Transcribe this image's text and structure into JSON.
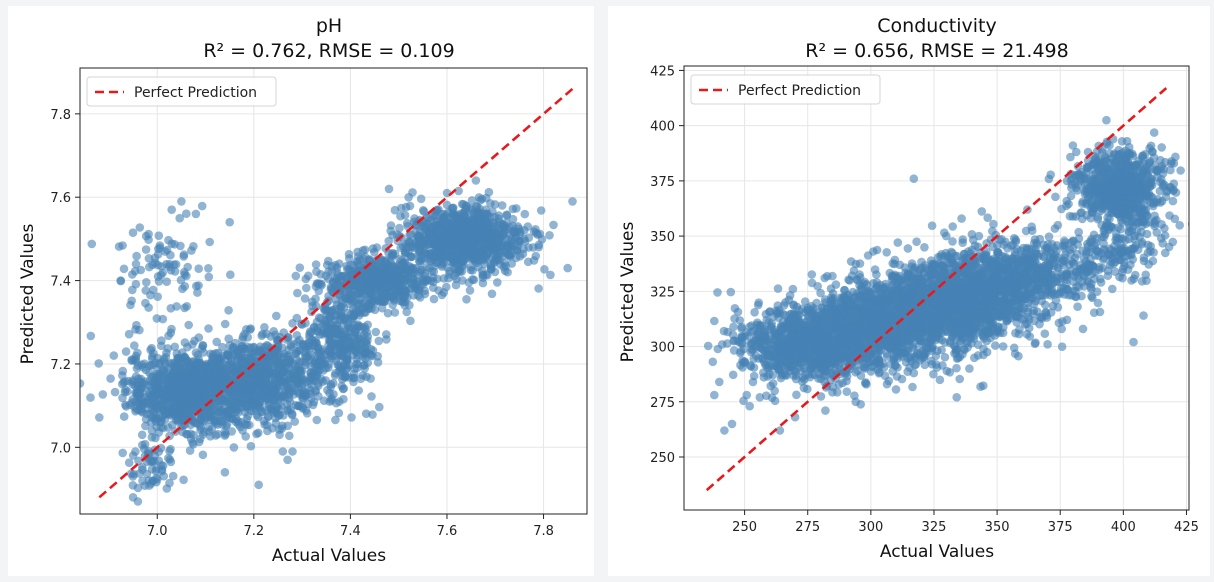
{
  "chart_data": [
    {
      "type": "scatter",
      "title": "pH",
      "subtitle": "R² = 0.762, RMSE = 0.109",
      "xlabel": "Actual Values",
      "ylabel": "Predicted Values",
      "xlim": [
        6.84,
        7.89
      ],
      "ylim": [
        6.84,
        7.91
      ],
      "xticks": [
        "7.0",
        "7.2",
        "7.4",
        "7.6",
        "7.8"
      ],
      "yticks": [
        "7.0",
        "7.2",
        "7.4",
        "7.6",
        "7.8"
      ],
      "grid": true,
      "legend": {
        "location": "top-left",
        "entries": [
          "Perfect Prediction"
        ]
      },
      "reference_line": {
        "name": "Perfect Prediction",
        "color": "#e8191b",
        "style": "dashed",
        "from": [
          6.88,
          6.88
        ],
        "to": [
          7.86,
          7.86
        ]
      },
      "point_color": "#4682b4",
      "series": [
        {
          "clusters": [
            {
              "x": [
                6.93,
                7.2
              ],
              "y": [
                7.03,
                7.24
              ],
              "n": 900
            },
            {
              "x": [
                7.08,
                7.36
              ],
              "y": [
                7.06,
                7.27
              ],
              "n": 750
            },
            {
              "x": [
                7.3,
                7.46
              ],
              "y": [
                7.13,
                7.39
              ],
              "n": 350
            },
            {
              "x": [
                7.34,
                7.58
              ],
              "y": [
                7.33,
                7.47
              ],
              "n": 500
            },
            {
              "x": [
                7.5,
                7.77
              ],
              "y": [
                7.42,
                7.58
              ],
              "n": 900
            },
            {
              "x": [
                6.92,
                7.1
              ],
              "y": [
                7.3,
                7.55
              ],
              "n": 90
            },
            {
              "x": [
                6.94,
                7.04
              ],
              "y": [
                6.88,
                7.03
              ],
              "n": 60
            }
          ],
          "points": [
            {
              "x": 7.05,
              "y": 7.59
            },
            {
              "x": 7.03,
              "y": 7.57
            },
            {
              "x": 7.08,
              "y": 7.56
            },
            {
              "x": 7.15,
              "y": 7.54
            },
            {
              "x": 6.95,
              "y": 6.88
            },
            {
              "x": 6.96,
              "y": 6.87
            },
            {
              "x": 7.21,
              "y": 6.91
            },
            {
              "x": 7.26,
              "y": 6.99
            },
            {
              "x": 7.28,
              "y": 6.99
            },
            {
              "x": 7.27,
              "y": 6.97
            },
            {
              "x": 7.14,
              "y": 6.94
            },
            {
              "x": 7.79,
              "y": 7.48
            },
            {
              "x": 7.86,
              "y": 7.59
            },
            {
              "x": 7.85,
              "y": 7.43
            },
            {
              "x": 7.66,
              "y": 7.64
            },
            {
              "x": 7.6,
              "y": 7.61
            },
            {
              "x": 7.48,
              "y": 7.62
            },
            {
              "x": 6.91,
              "y": 7.22
            }
          ]
        }
      ]
    },
    {
      "type": "scatter",
      "title": "Conductivity",
      "subtitle": "R² = 0.656, RMSE = 21.498",
      "xlabel": "Actual Values",
      "ylabel": "Predicted Values",
      "xlim": [
        226,
        426
      ],
      "ylim": [
        226,
        427
      ],
      "xticks": [
        "250",
        "275",
        "300",
        "325",
        "350",
        "375",
        "400",
        "425"
      ],
      "yticks": [
        "250",
        "275",
        "300",
        "325",
        "350",
        "375",
        "400",
        "425"
      ],
      "grid": true,
      "legend": {
        "location": "top-left",
        "entries": [
          "Perfect Prediction"
        ]
      },
      "reference_line": {
        "name": "Perfect Prediction",
        "color": "#e8191b",
        "style": "dashed",
        "from": [
          235,
          235
        ],
        "to": [
          417,
          417
        ]
      },
      "point_color": "#4682b4",
      "series": [
        {
          "clusters": [
            {
              "x": [
                246,
                300
              ],
              "y": [
                282,
                318
              ],
              "n": 800
            },
            {
              "x": [
                270,
                335
              ],
              "y": [
                288,
                332
              ],
              "n": 1100
            },
            {
              "x": [
                300,
                360
              ],
              "y": [
                298,
                342
              ],
              "n": 1000
            },
            {
              "x": [
                320,
                375
              ],
              "y": [
                305,
                348
              ],
              "n": 600
            },
            {
              "x": [
                345,
                395
              ],
              "y": [
                320,
                350
              ],
              "n": 250
            },
            {
              "x": [
                380,
                418
              ],
              "y": [
                355,
                390
              ],
              "n": 700
            },
            {
              "x": [
                378,
                418
              ],
              "y": [
                330,
                360
              ],
              "n": 150
            }
          ],
          "points": [
            {
              "x": 242,
              "y": 262
            },
            {
              "x": 245,
              "y": 265
            },
            {
              "x": 252,
              "y": 273
            },
            {
              "x": 256,
              "y": 277
            },
            {
              "x": 238,
              "y": 278
            },
            {
              "x": 240,
              "y": 284
            },
            {
              "x": 264,
              "y": 262
            },
            {
              "x": 270,
              "y": 268
            },
            {
              "x": 282,
              "y": 271
            },
            {
              "x": 294,
              "y": 275
            },
            {
              "x": 317,
              "y": 376
            },
            {
              "x": 334,
              "y": 277
            },
            {
              "x": 380,
              "y": 391
            },
            {
              "x": 384,
              "y": 308
            },
            {
              "x": 370,
              "y": 301
            },
            {
              "x": 404,
              "y": 302
            },
            {
              "x": 408,
              "y": 314
            },
            {
              "x": 415,
              "y": 349
            },
            {
              "x": 356,
              "y": 340
            },
            {
              "x": 362,
              "y": 362
            }
          ]
        }
      ]
    }
  ]
}
